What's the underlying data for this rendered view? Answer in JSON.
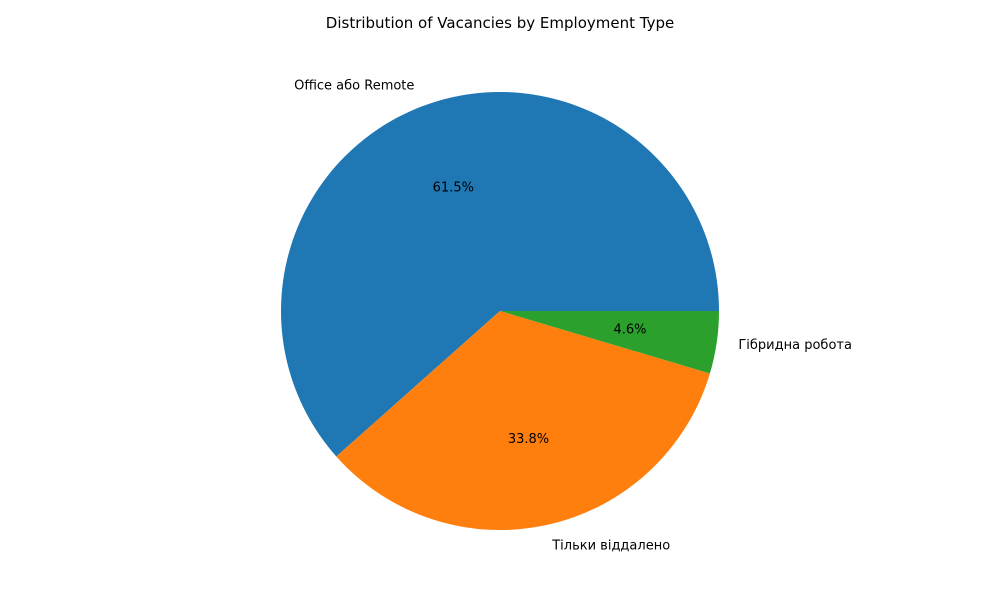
{
  "chart_data": {
    "type": "pie",
    "title": "Distribution of Vacancies by Employment Type",
    "categories": [
      "Office або Remote",
      "Тільки віддалено",
      "Гібридна робота"
    ],
    "values": [
      61.5,
      33.8,
      4.6
    ],
    "value_labels": [
      "61.5%",
      "33.8%",
      "4.6%"
    ],
    "colors": [
      "#1f77b4",
      "#ff7f0e",
      "#2ca02c"
    ],
    "start_angle_deg": 0,
    "direction": "counterclockwise",
    "legend": "none"
  }
}
